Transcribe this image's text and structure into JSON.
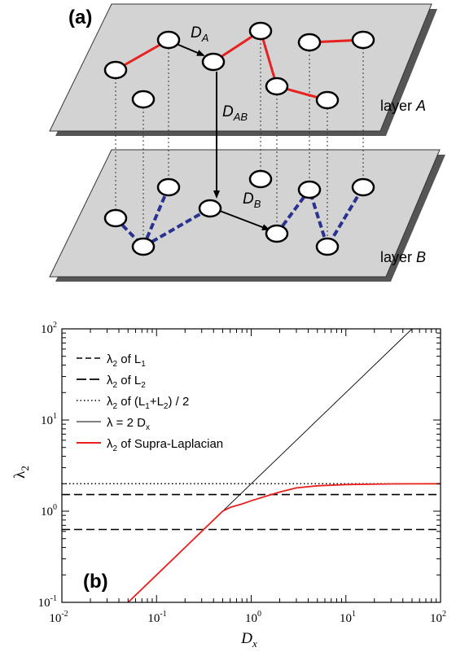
{
  "panel_a": {
    "label": "(a)",
    "layer_a_label": {
      "prefix": "layer ",
      "name": "A"
    },
    "layer_b_label": {
      "prefix": "layer ",
      "name": "B"
    },
    "arrow_labels": {
      "da": {
        "main": "D",
        "sub": "A"
      },
      "dab": {
        "main": "D",
        "sub": "AB"
      },
      "db": {
        "main": "D",
        "sub": "B"
      }
    },
    "colors": {
      "plane": "#d3d3d3",
      "shadow": "#555555",
      "layer_a_edges": "#e8201e",
      "layer_b_edges": "#2a3290"
    }
  },
  "panel_b": {
    "label": "(b)",
    "ylabel": "λ",
    "ylabel_sub": "2",
    "xlabel": "D",
    "xlabel_sub": "x",
    "legend": [
      {
        "id": "l1",
        "pre": "λ",
        "s1": "2",
        "mid": " of L",
        "s2": "1",
        "post": ""
      },
      {
        "id": "l2",
        "pre": "λ",
        "s1": "2",
        "mid": " of L",
        "s2": "2",
        "post": ""
      },
      {
        "id": "avg",
        "pre": "λ",
        "s1": "2",
        "mid": " of (L",
        "s2": "1",
        "mid2": "+L",
        "s3": "2",
        "post": ") / 2"
      },
      {
        "id": "line",
        "pre": "λ = 2 D",
        "s1": "x",
        "mid": "",
        "s2": "",
        "post": ""
      },
      {
        "id": "supra",
        "pre": "λ",
        "s1": "2",
        "mid": " of Supra-Laplacian",
        "s2": "",
        "post": ""
      }
    ],
    "x_tick_labels": [
      {
        "base": "10",
        "exp": "-2"
      },
      {
        "base": "10",
        "exp": "-1"
      },
      {
        "base": "10",
        "exp": "0"
      },
      {
        "base": "10",
        "exp": "1"
      },
      {
        "base": "10",
        "exp": "2"
      }
    ],
    "y_tick_labels": [
      {
        "base": "10",
        "exp": "-1"
      },
      {
        "base": "10",
        "exp": "0"
      },
      {
        "base": "10",
        "exp": "1"
      },
      {
        "base": "10",
        "exp": "2"
      }
    ],
    "colors": {
      "supra": "#e8201e",
      "black": "#000000"
    }
  },
  "chart_data": {
    "type": "line",
    "xscale": "log",
    "yscale": "log",
    "xlim": [
      0.01,
      100
    ],
    "ylim": [
      0.1,
      100
    ],
    "xlabel": "Dx",
    "ylabel": "λ2",
    "legend_position": "top-left",
    "series": [
      {
        "name": "λ2 of L1",
        "style": "dashed",
        "x": [
          0.01,
          100
        ],
        "y": [
          0.63,
          0.63
        ]
      },
      {
        "name": "λ2 of L2",
        "style": "dashed",
        "x": [
          0.01,
          100
        ],
        "y": [
          1.52,
          1.52
        ]
      },
      {
        "name": "λ2 of (L1+L2) / 2",
        "style": "dotted",
        "x": [
          0.01,
          100
        ],
        "y": [
          2.0,
          2.0
        ]
      },
      {
        "name": "λ = 2 Dx",
        "style": "solid-thin",
        "x": [
          0.01,
          50
        ],
        "y": [
          0.02,
          100
        ]
      },
      {
        "name": "λ2 of Supra-Laplacian",
        "style": "solid-red",
        "x": [
          0.05,
          0.1,
          0.2,
          0.3,
          0.5,
          0.6,
          0.8,
          1.0,
          1.5,
          2.0,
          3.0,
          5.0,
          10.0,
          30.0,
          100.0
        ],
        "y": [
          0.1,
          0.2,
          0.4,
          0.6,
          1.0,
          1.1,
          1.2,
          1.3,
          1.48,
          1.62,
          1.8,
          1.9,
          1.96,
          1.99,
          2.0
        ]
      }
    ]
  }
}
